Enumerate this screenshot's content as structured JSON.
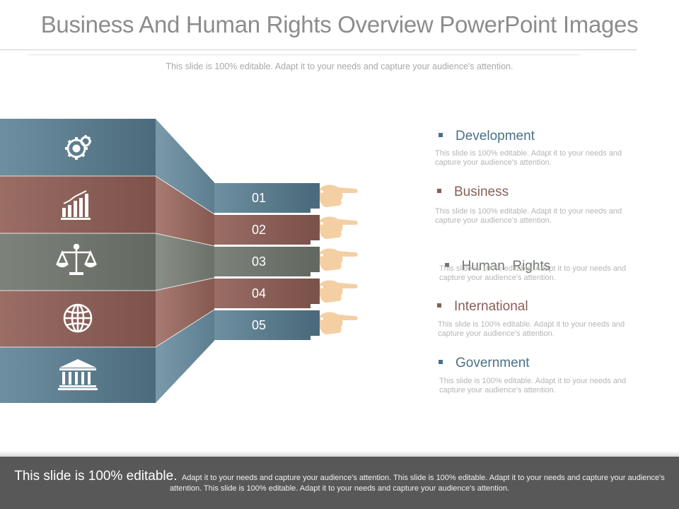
{
  "title": "Business And Human Rights Overview PowerPoint Images",
  "subtitle": "This slide is 100% editable. Adapt it to your needs and capture your audience's attention.",
  "colors": {
    "blue": "#577787",
    "brown": "#8a5e57",
    "gray": "#6e746c",
    "hand": "#f3cfa3",
    "head_blue": "#4a7186",
    "head_brown": "#8a5e57"
  },
  "blocks": [
    {
      "icon": "gears-icon"
    },
    {
      "icon": "bar-chart-icon"
    },
    {
      "icon": "scales-icon"
    },
    {
      "icon": "globe-icon"
    },
    {
      "icon": "bank-icon"
    }
  ],
  "numbers": [
    "01",
    "02",
    "03",
    "04",
    "05"
  ],
  "items": [
    {
      "heading": "Development",
      "desc": "This slide is 100% editable. Adapt it to your needs and capture your audience's attention."
    },
    {
      "heading": "Business",
      "desc": "This slide is 100% editable. Adapt it to your needs and capture your audience's attention."
    },
    {
      "heading": "Human  Rights",
      "desc": "This slide is 100% editable. Adapt it to your needs and capture your audience's attention."
    },
    {
      "heading": "International",
      "desc": "This slide is 100% editable. Adapt it to your needs and capture your audience's attention."
    },
    {
      "heading": "Government",
      "desc": "This slide is 100% editable. Adapt it to your needs and capture your audience's attention."
    }
  ],
  "footer": {
    "lead": "This slide is 100% editable.",
    "text": "Adapt it to your needs and capture your audience's attention. This slide is 100% editable. Adapt it to your needs and capture your audience's attention. This slide is 100% editable. Adapt it to your needs and capture your audience's attention."
  }
}
